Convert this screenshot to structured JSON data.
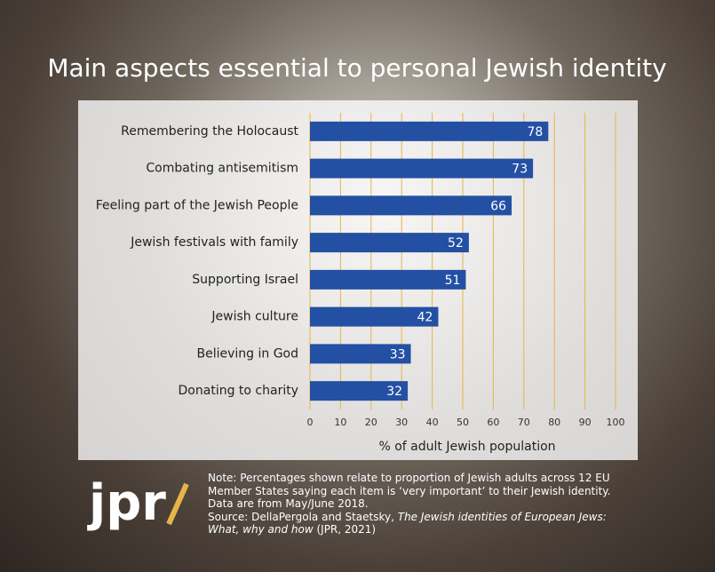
{
  "chart_data": {
    "type": "bar",
    "orientation": "horizontal",
    "title": "Main aspects essential to personal Jewish identity",
    "categories": [
      "Remembering the Holocaust",
      "Combating antisemitism",
      "Feeling part of the Jewish People",
      "Jewish festivals with family",
      "Supporting Israel",
      "Jewish culture",
      "Believing in God",
      "Donating to charity"
    ],
    "values": [
      78,
      73,
      66,
      52,
      51,
      42,
      33,
      32
    ],
    "color": "#2350a3",
    "xlim": [
      0,
      100
    ],
    "xticks": [
      0,
      10,
      20,
      30,
      40,
      50,
      60,
      70,
      80,
      90,
      100
    ],
    "xlabel": "%  of adult Jewish population",
    "grid": true,
    "grid_color": "#e6b449"
  },
  "logo": "jpr",
  "note": "Note: Percentages shown relate to proportion of Jewish adults across 12 EU Member States saying each item is ‘very important’ to their Jewish identity. Data are from May/June 2018.",
  "source": {
    "prefix": "Source: DellaPergola and Staetsky, ",
    "title": "The Jewish identities of European Jews: What, why and how",
    "suffix": " (JPR, 2021)"
  }
}
